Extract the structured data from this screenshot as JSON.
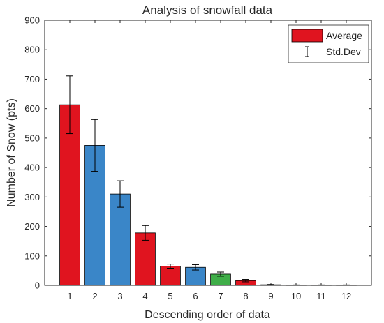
{
  "chart_data": {
    "type": "bar",
    "title": "Analysis of snowfall data",
    "xlabel": "Descending order of data",
    "ylabel": "Number of Snow (pts)",
    "ylim": [
      0,
      900
    ],
    "yticks": [
      0,
      100,
      200,
      300,
      400,
      500,
      600,
      700,
      800,
      900
    ],
    "categories": [
      "1",
      "2",
      "3",
      "4",
      "5",
      "6",
      "7",
      "8",
      "9",
      "10",
      "11",
      "12"
    ],
    "values": [
      613,
      475,
      310,
      178,
      65,
      61,
      38,
      16,
      2,
      1,
      1,
      1
    ],
    "std_dev": [
      98,
      88,
      45,
      25,
      7,
      9,
      7,
      4,
      1,
      0.5,
      0.5,
      0.5
    ],
    "bar_colors": [
      "#e0141f",
      "#3a86c8",
      "#3a86c8",
      "#e0141f",
      "#e0141f",
      "#3a86c8",
      "#3fae48",
      "#e0141f",
      "#e0141f",
      "#e0141f",
      "#e0141f",
      "#e0141f"
    ],
    "legend": {
      "position": "top-right",
      "items": [
        {
          "label": "Average",
          "swatch": "bar",
          "color": "#e0141f"
        },
        {
          "label": "Std.Dev",
          "swatch": "errorbar",
          "color": "#000000"
        }
      ]
    },
    "grid": false
  }
}
